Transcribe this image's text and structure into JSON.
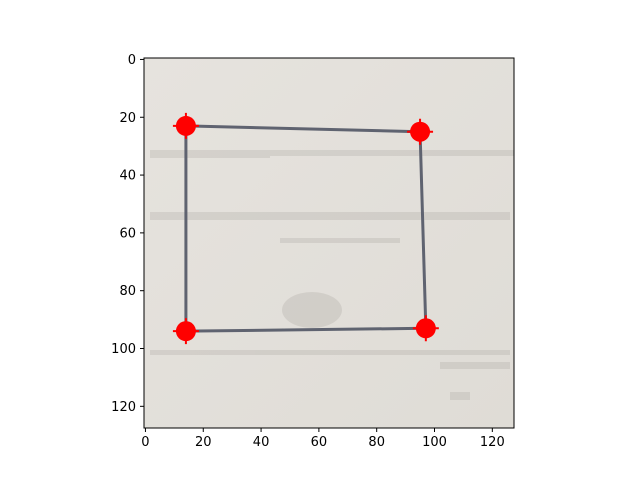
{
  "chart_data": {
    "type": "scatter",
    "title": "",
    "xlabel": "",
    "ylabel": "",
    "xlim": [
      -0.5,
      127.5
    ],
    "ylim": [
      127.5,
      -0.5
    ],
    "y_inverted": true,
    "x_ticks": [
      "0",
      "20",
      "40",
      "60",
      "80",
      "100",
      "120"
    ],
    "y_ticks": [
      "0",
      "20",
      "40",
      "60",
      "80",
      "100",
      "120"
    ],
    "grid": false,
    "background": "photo of paper with a hand-drawn quadrilateral outline",
    "series": [
      {
        "marker": "red-circle",
        "color": "#ff0000",
        "points": [
          {
            "x": 14,
            "y": 23
          },
          {
            "x": 95,
            "y": 25
          },
          {
            "x": 14,
            "y": 94
          },
          {
            "x": 97,
            "y": 93
          }
        ]
      }
    ],
    "drawn_quadrilateral": [
      {
        "x": 14,
        "y": 23
      },
      {
        "x": 95,
        "y": 25
      },
      {
        "x": 97,
        "y": 93
      },
      {
        "x": 14,
        "y": 94
      }
    ]
  },
  "colors": {
    "paper": "#e3e0db",
    "paper_edge": "#d8d4cd",
    "stroke": "#5f6370",
    "marker": "#ff0000"
  }
}
